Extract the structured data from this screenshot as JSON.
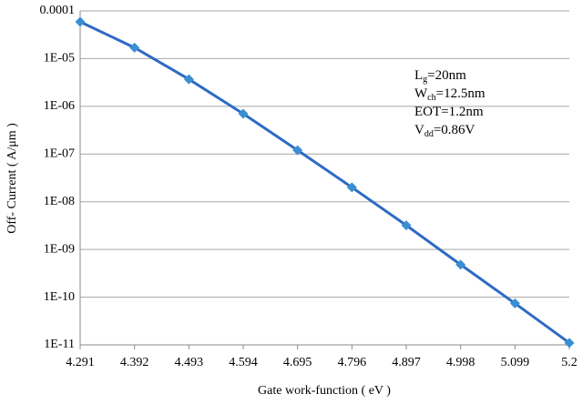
{
  "chart_data": {
    "type": "line",
    "y_label": "Off- Current ( A/μm )",
    "x_label": "Gate work-function ( eV )",
    "x": [
      4.291,
      4.392,
      4.493,
      4.594,
      4.695,
      4.796,
      4.897,
      4.998,
      5.099,
      5.2
    ],
    "series": [
      {
        "name": "Off-current",
        "color": "#2e6ac4",
        "marker_color": "#3a8fd2",
        "values": [
          5.9e-05,
          1.7e-05,
          3.7e-06,
          7e-07,
          1.2e-07,
          2e-08,
          3.2e-09,
          4.8e-10,
          7.4e-11,
          1.1e-11
        ]
      }
    ],
    "xlim": [
      4.291,
      5.2
    ],
    "xticks": [
      4.291,
      4.392,
      4.493,
      4.594,
      4.695,
      4.796,
      4.897,
      4.998,
      5.099,
      5.2
    ],
    "ylim": [
      1e-11,
      0.0001
    ],
    "yscale": "log",
    "yticks": [
      {
        "value": 1e-11,
        "label": "1E-11"
      },
      {
        "value": 1e-10,
        "label": "1E-10"
      },
      {
        "value": 1e-09,
        "label": "1E-09"
      },
      {
        "value": 1e-08,
        "label": "1E-08"
      },
      {
        "value": 1e-07,
        "label": "1E-07"
      },
      {
        "value": 1e-06,
        "label": "1E-06"
      },
      {
        "value": 1e-05,
        "label": "1E-05"
      },
      0.0001
    ],
    "grid": true,
    "annotations": [
      [
        "L",
        "g",
        "=20nm"
      ],
      [
        "W",
        "ch",
        "=12.5nm"
      ],
      [
        "EOT=1.2nm"
      ],
      [
        "V",
        "dd",
        "=0.86V"
      ]
    ]
  }
}
